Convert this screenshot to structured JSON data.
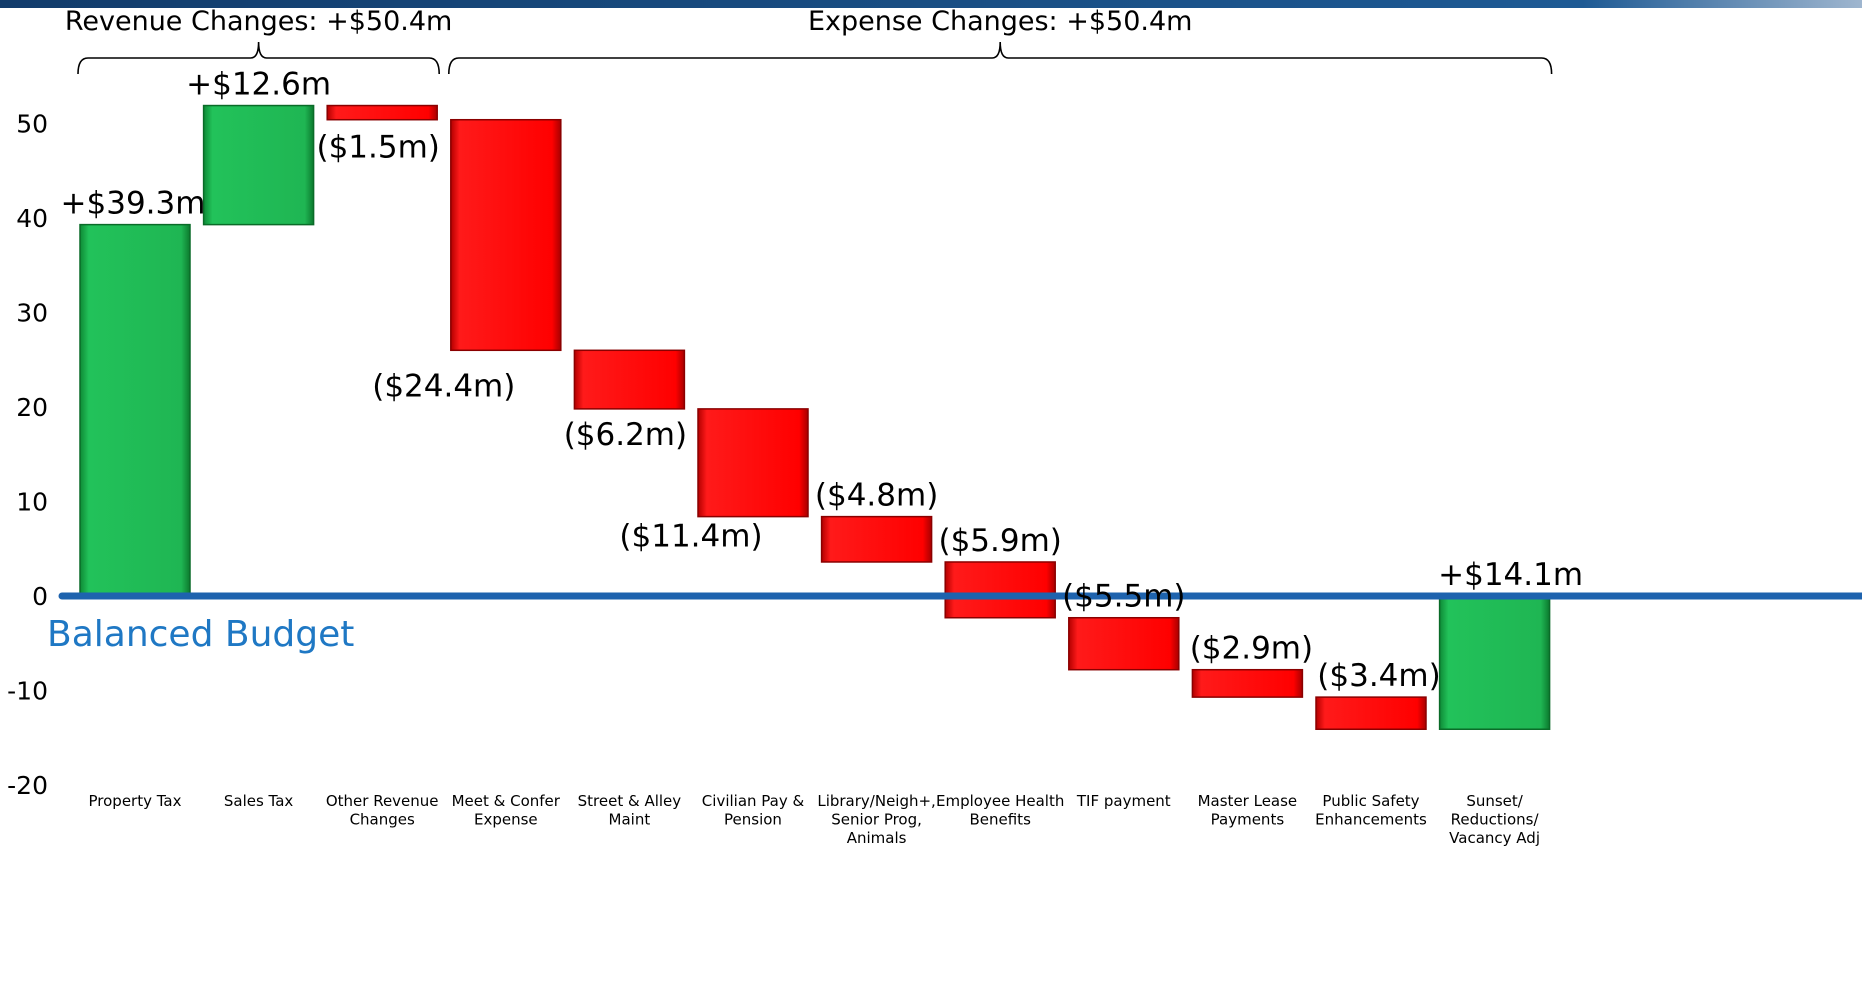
{
  "colors": {
    "positive": "#18b04c",
    "negative": "#ff0000",
    "baseline": "#1e63ae",
    "baseline_text": "#1f78c4",
    "band": "#1b3f6e"
  },
  "groups": [
    {
      "label": "Revenue Changes: +$50.4m",
      "from_index": 0,
      "to_index": 2
    },
    {
      "label": "Expense Changes: +$50.4m",
      "from_index": 3,
      "to_index": 11
    }
  ],
  "baseline_label": "Balanced Budget",
  "chart_data": {
    "type": "waterfall",
    "title": "",
    "xlabel": "",
    "ylabel": "",
    "ylim": [
      -20,
      50
    ],
    "yticks": [
      50,
      40,
      30,
      20,
      10,
      0,
      -10,
      -20
    ],
    "grid": false,
    "legend": "none",
    "bars": [
      {
        "category": [
          "Property Tax"
        ],
        "start": 0,
        "end": 39.3,
        "label": "+$39.3m",
        "kind": "positive"
      },
      {
        "category": [
          "Sales Tax"
        ],
        "start": 39.3,
        "end": 51.9,
        "label": "+$12.6m",
        "kind": "positive"
      },
      {
        "category": [
          "Other Revenue",
          "Changes"
        ],
        "start": 51.9,
        "end": 50.4,
        "label": "($1.5m)",
        "kind": "negative"
      },
      {
        "category": [
          "Meet & Confer",
          "Expense"
        ],
        "start": 50.4,
        "end": 26.0,
        "label": "($24.4m)",
        "kind": "negative"
      },
      {
        "category": [
          "Street & Alley",
          "Maint"
        ],
        "start": 26.0,
        "end": 19.8,
        "label": "($6.2m)",
        "kind": "negative"
      },
      {
        "category": [
          "Civilian Pay &",
          "Pension"
        ],
        "start": 19.8,
        "end": 8.4,
        "label": "($11.4m)",
        "kind": "negative"
      },
      {
        "category": [
          "Library/Neigh+,",
          "Senior Prog,",
          "Animals"
        ],
        "start": 8.4,
        "end": 3.6,
        "label": "($4.8m)",
        "kind": "negative"
      },
      {
        "category": [
          "Employee Health",
          "Benefits"
        ],
        "start": 3.6,
        "end": -2.3,
        "label": "($5.9m)",
        "kind": "negative"
      },
      {
        "category": [
          "TIF payment"
        ],
        "start": -2.3,
        "end": -7.8,
        "label": "($5.5m)",
        "kind": "negative"
      },
      {
        "category": [
          "Master Lease",
          "Payments"
        ],
        "start": -7.8,
        "end": -10.7,
        "label": "($2.9m)",
        "kind": "negative"
      },
      {
        "category": [
          "Public Safety",
          "Enhancements"
        ],
        "start": -10.7,
        "end": -14.1,
        "label": "($3.4m)",
        "kind": "negative"
      },
      {
        "category": [
          "Sunset/",
          "Reductions/",
          "Vacancy Adj"
        ],
        "start": -14.1,
        "end": 0,
        "label": "+$14.1m",
        "kind": "positive"
      }
    ]
  }
}
